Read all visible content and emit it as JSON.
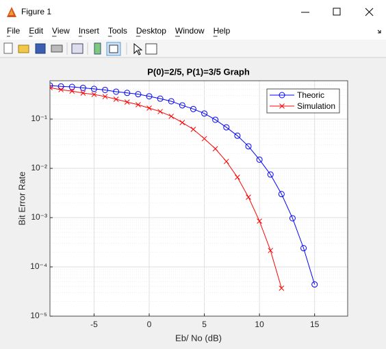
{
  "window": {
    "title": "Figure 1",
    "menu": [
      "File",
      "Edit",
      "View",
      "Insert",
      "Tools",
      "Desktop",
      "Window",
      "Help"
    ]
  },
  "chart_data": {
    "type": "line",
    "title": "P(0)=2/5, P(1)=3/5 Graph",
    "xlabel": "Eb/ No (dB)",
    "ylabel": "Bit Error Rate",
    "xlim": [
      -9,
      18
    ],
    "ylim": [
      1e-05,
      0.6
    ],
    "yscale": "log",
    "xticks": [
      -5,
      0,
      5,
      10,
      15
    ],
    "yticks": [
      {
        "value": 1e-05,
        "label": "10⁻⁵"
      },
      {
        "value": 0.0001,
        "label": "10⁻⁴"
      },
      {
        "value": 0.001,
        "label": "10⁻³"
      },
      {
        "value": 0.01,
        "label": "10⁻²"
      },
      {
        "value": 0.1,
        "label": "10⁻¹"
      }
    ],
    "grid": true,
    "legend": "upper right",
    "series": [
      {
        "name": "Theoric",
        "color": "#0000ff",
        "marker": "o",
        "x": [
          -9,
          -8,
          -7,
          -6,
          -5,
          -4,
          -3,
          -2,
          -1,
          0,
          1,
          2,
          3,
          4,
          5,
          6,
          7,
          8,
          9,
          10,
          11,
          12,
          13,
          14,
          15
        ],
        "values": [
          0.48,
          0.46,
          0.45,
          0.43,
          0.41,
          0.39,
          0.36,
          0.34,
          0.32,
          0.29,
          0.26,
          0.23,
          0.19,
          0.16,
          0.13,
          0.097,
          0.068,
          0.046,
          0.028,
          0.015,
          0.0075,
          0.003,
          0.00097,
          0.00024,
          4.4e-05
        ]
      },
      {
        "name": "Simulation",
        "color": "#ff0000",
        "marker": "x",
        "x": [
          -9,
          -8,
          -7,
          -6,
          -5,
          -4,
          -3,
          -2,
          -1,
          0,
          1,
          2,
          3,
          4,
          5,
          6,
          7,
          8,
          9,
          10,
          11,
          12
        ],
        "values": [
          0.435,
          0.395,
          0.37,
          0.337,
          0.316,
          0.287,
          0.253,
          0.222,
          0.196,
          0.167,
          0.142,
          0.114,
          0.085,
          0.062,
          0.04,
          0.025,
          0.0138,
          0.0066,
          0.0026,
          0.00085,
          0.000215,
          3.7e-05
        ]
      }
    ]
  }
}
